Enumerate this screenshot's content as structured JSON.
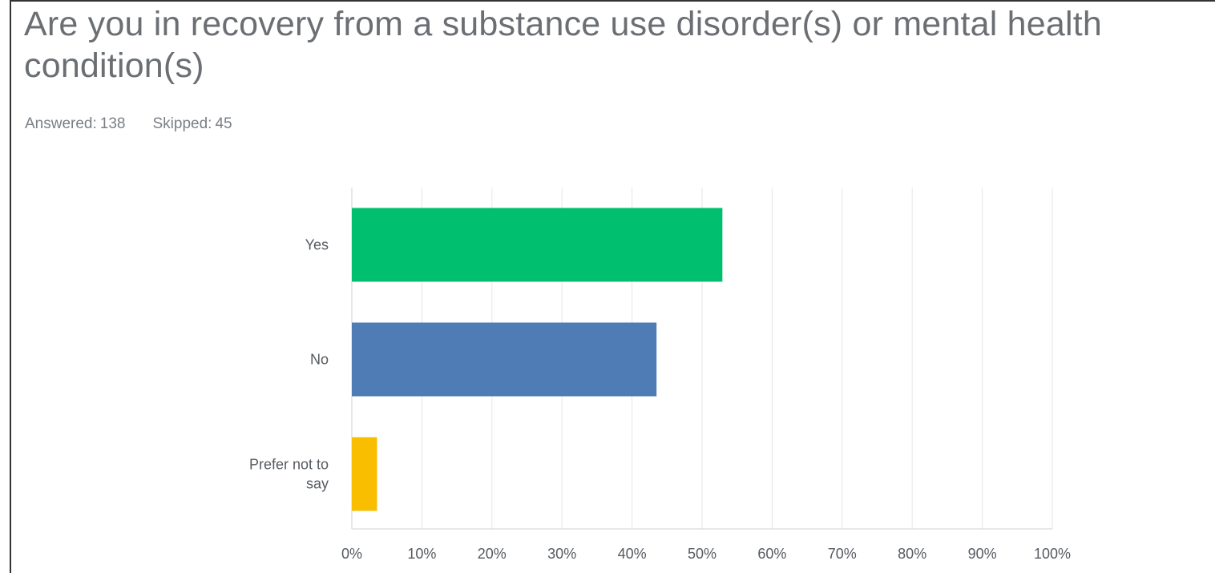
{
  "question": {
    "title": "Are you in recovery from a substance use disorder(s) or mental health condition(s)"
  },
  "stats": {
    "answered_label": "Answered:",
    "answered_value": "138",
    "skipped_label": "Skipped:",
    "skipped_value": "45"
  },
  "chart_data": {
    "type": "bar",
    "orientation": "horizontal",
    "categories": [
      {
        "label_lines": [
          "Yes"
        ],
        "value": 52.9,
        "color": "#00bf6f"
      },
      {
        "label_lines": [
          "No"
        ],
        "value": 43.5,
        "color": "#507cb6"
      },
      {
        "label_lines": [
          "Prefer not to",
          "say"
        ],
        "value": 3.6,
        "color": "#f9be00"
      }
    ],
    "xlim": [
      0,
      100
    ],
    "xticks": [
      0,
      10,
      20,
      30,
      40,
      50,
      60,
      70,
      80,
      90,
      100
    ],
    "tick_suffix": "%",
    "grid": true,
    "gridline_color": "#e6e6e6",
    "axis_color": "#d0d0d0"
  }
}
